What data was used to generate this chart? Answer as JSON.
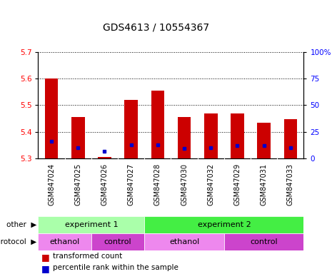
{
  "title": "GDS4613 / 10554367",
  "samples": [
    "GSM847024",
    "GSM847025",
    "GSM847026",
    "GSM847027",
    "GSM847028",
    "GSM847030",
    "GSM847032",
    "GSM847029",
    "GSM847031",
    "GSM847033"
  ],
  "bar_bottom": 5.3,
  "bar_tops": [
    5.6,
    5.455,
    5.305,
    5.52,
    5.555,
    5.455,
    5.468,
    5.468,
    5.435,
    5.448
  ],
  "percentile_values": [
    5.365,
    5.342,
    5.328,
    5.352,
    5.352,
    5.338,
    5.34,
    5.349,
    5.348,
    5.34
  ],
  "ylim": [
    5.3,
    5.7
  ],
  "yticks_left": [
    5.3,
    5.4,
    5.5,
    5.6,
    5.7
  ],
  "yticks_right": [
    0,
    25,
    50,
    75,
    100
  ],
  "bar_color": "#cc0000",
  "percentile_color": "#0000cc",
  "grid_color": "#000000",
  "experiment1_color": "#aaffaa",
  "experiment2_color": "#44ee44",
  "ethanol_color": "#ee88ee",
  "control_color": "#cc44cc",
  "bar_width": 0.5,
  "xtick_bg": "#cccccc"
}
